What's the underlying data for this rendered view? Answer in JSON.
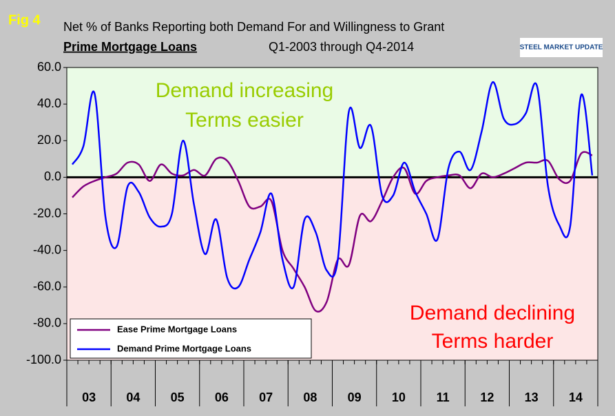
{
  "chart_data": {
    "type": "line",
    "figure_label": "Fig 4",
    "title": "Net % of Banks Reporting both Demand For and Willingness to Grant",
    "subtitle": "Prime Mortgage Loans",
    "period": "Q1-2003 through Q4-2014",
    "logo": "STEEL MARKET UPDATE",
    "annotations": [
      "Demand increasing",
      "Terms easier",
      "Demand declining",
      "Terms harder"
    ],
    "year_labels": [
      "03",
      "04",
      "05",
      "06",
      "07",
      "08",
      "09",
      "10",
      "11",
      "12",
      "13",
      "14"
    ],
    "ylim": [
      -100,
      60
    ],
    "yticks": [
      {
        "value": 60,
        "label": "60.0"
      },
      {
        "value": 40,
        "label": "40.0"
      },
      {
        "value": 20,
        "label": "20.0"
      },
      {
        "value": 0,
        "label": "0.0"
      },
      {
        "value": -20,
        "label": "-20.0"
      },
      {
        "value": -40,
        "label": "-40.0"
      },
      {
        "value": -60,
        "label": "-60.0"
      },
      {
        "value": -80,
        "label": "-80.0"
      },
      {
        "value": -100,
        "label": "-100.0"
      }
    ],
    "series": [
      {
        "name": "Ease Prime Mortgage Loans",
        "color": "#800080",
        "values": [
          -11,
          -5,
          -2,
          0,
          2,
          8,
          7,
          -2,
          7,
          2,
          1,
          4,
          1,
          10,
          9,
          -2,
          -16,
          -16,
          -13,
          -40,
          -50,
          -60,
          -73,
          -68,
          -45,
          -48,
          -21,
          -24,
          -13,
          0,
          5,
          -9,
          -2,
          0,
          1,
          1,
          -6,
          2,
          0,
          2,
          5,
          8,
          8,
          9,
          -1,
          -2,
          13,
          12
        ]
      },
      {
        "name": "Demand Prime Mortgage Loans",
        "color": "#0000ff",
        "values": [
          7,
          17,
          46,
          -22,
          -38,
          -5,
          -8,
          -22,
          -27,
          -20,
          20,
          -15,
          -42,
          -23,
          -55,
          -60,
          -45,
          -30,
          -9,
          -45,
          -60,
          -23,
          -30,
          -51,
          -45,
          36,
          16,
          28,
          -10,
          -10,
          8,
          -8,
          -20,
          -34,
          5,
          14,
          4,
          25,
          52,
          32,
          29,
          35,
          50,
          -5,
          -26,
          -27,
          45,
          1
        ]
      }
    ]
  }
}
